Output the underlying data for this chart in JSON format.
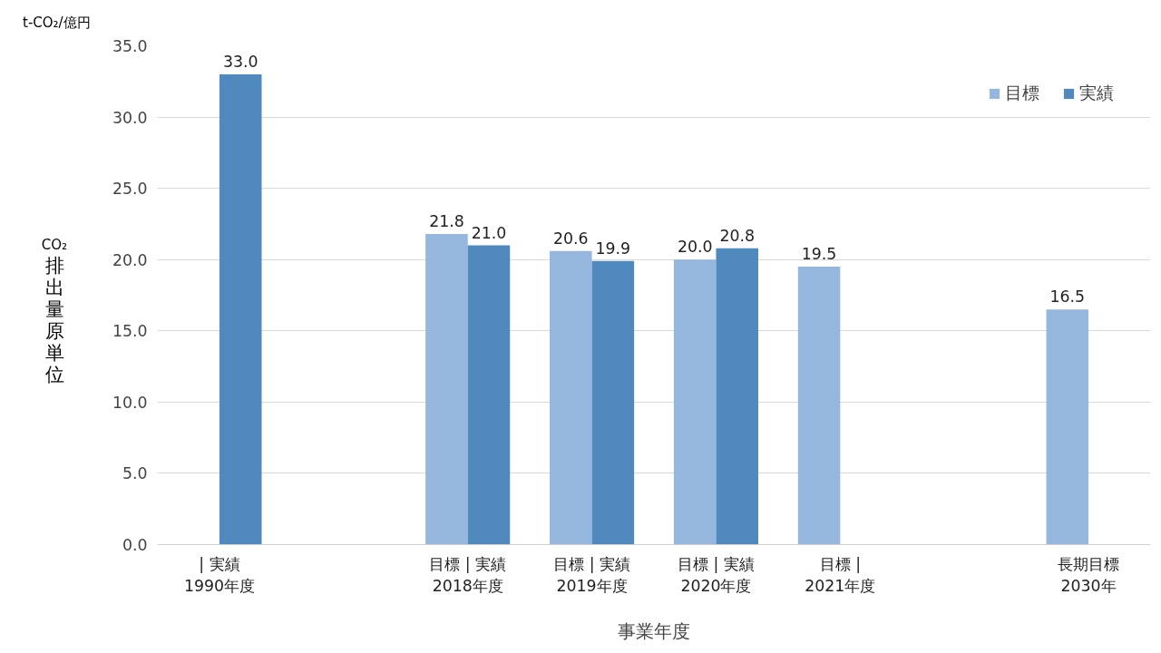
{
  "chart_data": {
    "type": "bar",
    "xlabel": "事業年度",
    "ylabel": "CO₂\n排出量原単位",
    "annotations": [
      "t-CO₂/億円"
    ],
    "categories": [
      "| 実績\n1990年度",
      null,
      "目標 | 実績\n2018年度",
      "目標 | 実績\n2019年度",
      "目標 | 実績\n2020年度",
      "目標 |\n2021年度",
      null,
      "長期目標\n2030年"
    ],
    "series": [
      {
        "name": "目標",
        "color": "#95b7de",
        "values": [
          null,
          null,
          21.8,
          20.6,
          20.0,
          19.5,
          null,
          16.5
        ],
        "value_labels": [
          null,
          null,
          "21.8",
          "20.6",
          "20.0",
          "19.5",
          null,
          "16.5"
        ]
      },
      {
        "name": "実績",
        "color": "#4f89bd",
        "values": [
          33.0,
          null,
          21.0,
          19.9,
          20.8,
          null,
          null,
          null
        ],
        "value_labels": [
          "33.0",
          null,
          "21.0",
          "19.9",
          "20.8",
          null,
          null,
          null
        ]
      }
    ],
    "ylim": [
      0,
      35
    ],
    "yticks": [
      {
        "value": 0,
        "label": "0.0"
      },
      {
        "value": 5,
        "label": "5.0"
      },
      {
        "value": 10,
        "label": "10.0"
      },
      {
        "value": 15,
        "label": "15.0"
      },
      {
        "value": 20,
        "label": "20.0"
      },
      {
        "value": 25,
        "label": "25.0"
      },
      {
        "value": 30,
        "label": "30.0"
      },
      {
        "value": 35,
        "label": "35.0"
      }
    ],
    "grid": "y",
    "legend": "top right"
  }
}
